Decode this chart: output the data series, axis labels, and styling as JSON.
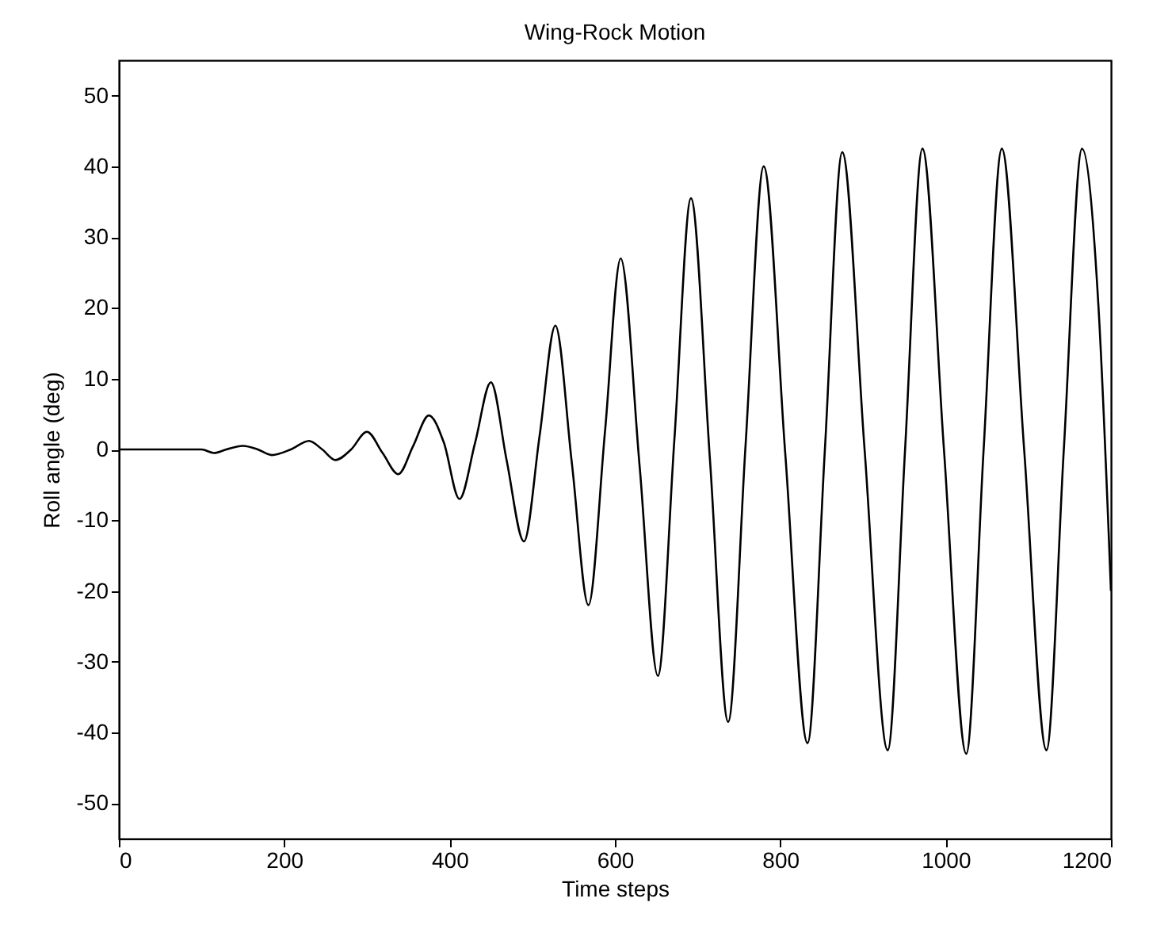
{
  "chart_data": {
    "type": "line",
    "title": "Wing-Rock Motion",
    "xlabel": "Time steps",
    "ylabel": "Roll angle (deg)",
    "x": [
      0,
      50,
      100,
      115,
      130,
      150,
      168,
      185,
      208,
      230,
      246,
      262,
      281,
      300,
      319,
      338,
      356,
      375,
      393,
      412,
      431,
      450,
      469,
      490,
      509,
      528,
      548,
      568,
      588,
      607,
      630,
      652,
      672,
      692,
      715,
      737,
      758,
      780,
      806,
      833,
      854,
      875,
      902,
      930,
      951,
      972,
      998,
      1025,
      1046,
      1068,
      1095,
      1122,
      1143,
      1165,
      1185,
      1200
    ],
    "series": [
      {
        "color": "#000000",
        "values": [
          0,
          0,
          0,
          -0.5,
          0,
          0.5,
          0,
          -0.8,
          0,
          1.2,
          0,
          -1.5,
          0,
          2.5,
          -0.5,
          -3.5,
          0.5,
          4.8,
          1,
          -7,
          1,
          9.5,
          -1.5,
          -13,
          2,
          17.5,
          -2,
          -22,
          2.5,
          27,
          -2.5,
          -32,
          1.5,
          35.5,
          -1.5,
          -38.5,
          0.5,
          40,
          -0.5,
          -41.5,
          0,
          42,
          0,
          -42.5,
          0,
          42.5,
          0,
          -43,
          0,
          42.5,
          0,
          -42.5,
          0,
          42.5,
          20,
          -20
        ]
      }
    ],
    "xlim": [
      0,
      1200
    ],
    "xticks": [
      0,
      200,
      400,
      600,
      800,
      1000,
      1200
    ],
    "ylim": [
      -55,
      55
    ],
    "yticks": [
      -50,
      -40,
      -30,
      -20,
      -10,
      0,
      10,
      20,
      30,
      40,
      50
    ],
    "grid": false,
    "marker": "none",
    "line_style": "solid"
  }
}
